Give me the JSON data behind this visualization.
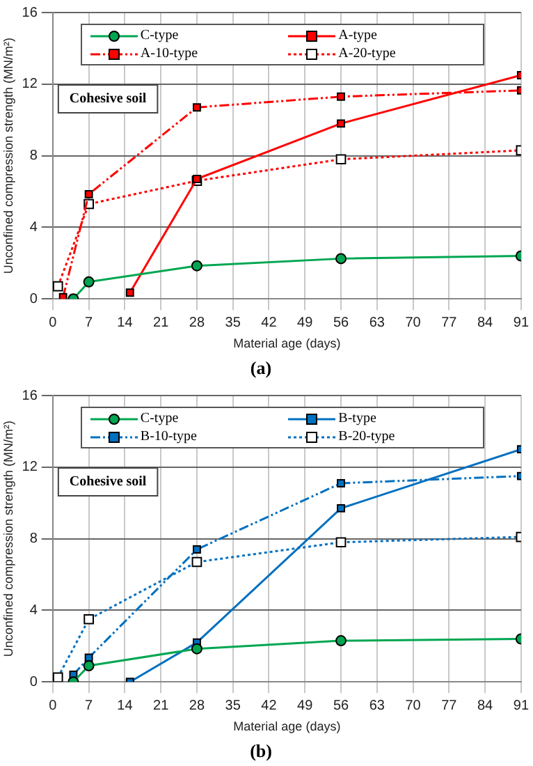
{
  "chart_data": [
    {
      "type": "line",
      "title": "(a)",
      "xlabel": "Material age (days)",
      "ylabel": "Unconfined compression strength (MN/m²)",
      "annotations": [
        "Cohesive soil"
      ],
      "xlim": [
        0,
        91
      ],
      "xticks": [
        0,
        7,
        14,
        21,
        28,
        35,
        42,
        49,
        56,
        63,
        70,
        77,
        84,
        91
      ],
      "ylim": [
        0,
        16
      ],
      "yticks": [
        0,
        4,
        8,
        12,
        16
      ],
      "grid": true,
      "legend": "top",
      "series": [
        {
          "name": "C-type",
          "color": "#00a651",
          "marker": "circle",
          "line_style": "solid",
          "x": [
            4,
            7,
            28,
            56,
            91
          ],
          "values": [
            0,
            0.95,
            1.85,
            2.25,
            2.4
          ]
        },
        {
          "name": "A-type",
          "color": "#ff0000",
          "marker": "square",
          "line_style": "solid",
          "x": [
            15,
            28,
            56,
            91
          ],
          "values": [
            0.35,
            6.7,
            9.8,
            12.5
          ]
        },
        {
          "name": "A-10-type",
          "color": "#ff0000",
          "marker": "square",
          "line_style": "dashed",
          "x": [
            2,
            7,
            28,
            56,
            91
          ],
          "values": [
            0.1,
            5.85,
            10.7,
            11.3,
            11.65
          ]
        },
        {
          "name": "A-20-type",
          "color": "#ff0000",
          "marker": "square",
          "line_style": "dotted",
          "x": [
            1,
            7,
            28,
            56,
            91
          ],
          "values": [
            0.7,
            5.3,
            6.6,
            7.8,
            8.3
          ]
        }
      ]
    },
    {
      "type": "line",
      "title": "(b)",
      "xlabel": "Material age (days)",
      "ylabel": "Unconfined compression strength (MN/m²)",
      "annotations": [
        "Cohesive soil"
      ],
      "xlim": [
        0,
        91
      ],
      "xticks": [
        0,
        7,
        14,
        21,
        28,
        35,
        42,
        49,
        56,
        63,
        70,
        77,
        84,
        91
      ],
      "ylim": [
        0,
        16
      ],
      "yticks": [
        0,
        4,
        8,
        12,
        16
      ],
      "grid": true,
      "legend": "top",
      "series": [
        {
          "name": "C-type",
          "color": "#00a651",
          "marker": "circle",
          "line_style": "solid",
          "x": [
            4,
            7,
            28,
            56,
            91
          ],
          "values": [
            0,
            0.9,
            1.85,
            2.3,
            2.4
          ]
        },
        {
          "name": "B-type",
          "color": "#0070c0",
          "marker": "square",
          "line_style": "solid",
          "x": [
            15,
            28,
            56,
            91
          ],
          "values": [
            0,
            2.2,
            9.7,
            13.0
          ]
        },
        {
          "name": "B-10-type",
          "color": "#0070c0",
          "marker": "square",
          "line_style": "dashed",
          "x": [
            4,
            7,
            28,
            56,
            91
          ],
          "values": [
            0.4,
            1.35,
            7.4,
            11.1,
            11.5
          ]
        },
        {
          "name": "B-20-type",
          "color": "#0070c0",
          "marker": "square",
          "line_style": "dotted",
          "x": [
            1,
            7,
            28,
            56,
            91
          ],
          "values": [
            0.25,
            3.5,
            6.7,
            7.8,
            8.1
          ]
        }
      ]
    }
  ]
}
